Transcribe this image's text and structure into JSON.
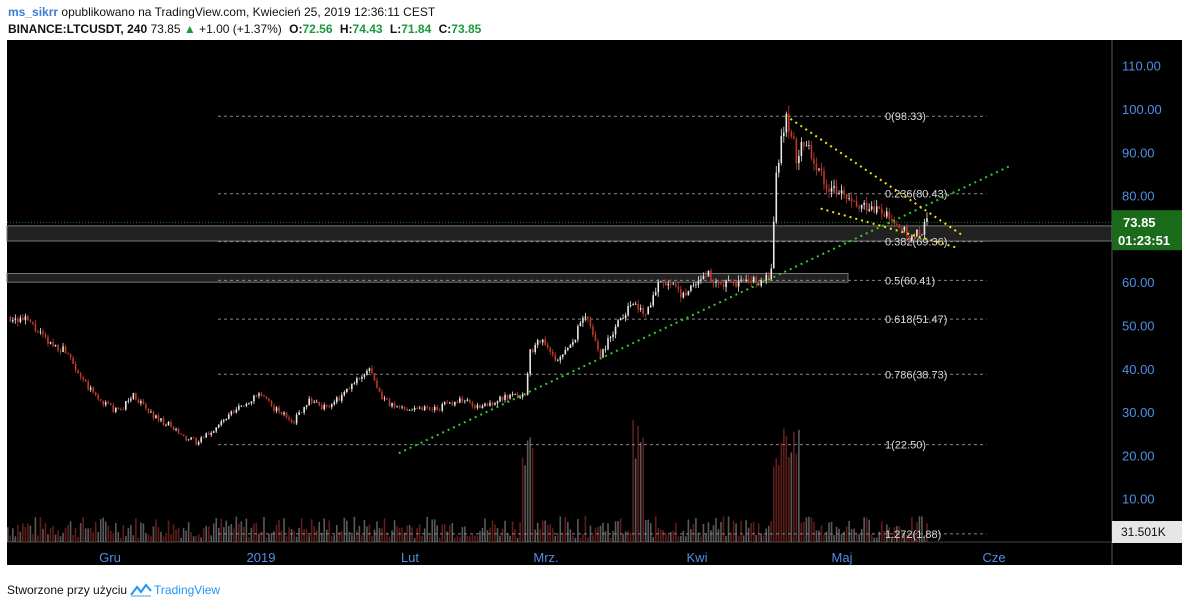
{
  "header": {
    "author": "ms_sikrr",
    "published_text": "opublikowano na TradingView.com, Kwiecień 25, 2019 12:36:11 CEST",
    "symbol": "BINANCE:LTCUSDT, 240",
    "last": "73.85",
    "change": "+1.00 (+1.37%)",
    "open_label": "O:",
    "open": "72.56",
    "high_label": "H:",
    "high": "74.43",
    "low_label": "L:",
    "low": "71.84",
    "close_label": "C:",
    "close": "73.85"
  },
  "footer": {
    "created_with": "Stworzone przy użyciu",
    "brand": "TradingView"
  },
  "colors": {
    "background": "#000000",
    "up_candle": "#e8e8e8",
    "down_candle": "#c0392b",
    "trendline_green": "#2ecc2e",
    "wedge_yellow": "#f1e40f",
    "price_label": "#1a6b1a",
    "axis_text": "#4f8fe6"
  },
  "chart_data": {
    "type": "candlestick",
    "price_axis": {
      "min": 0,
      "max": 115,
      "ticks": [
        "10.00",
        "20.00",
        "30.00",
        "40.00",
        "50.00",
        "60.00",
        "70.00",
        "80.00",
        "90.00",
        "100.00",
        "110.00"
      ]
    },
    "time_axis": {
      "labels": [
        "Gru",
        "2019",
        "Lut",
        "Mrz.",
        "Kwi",
        "Maj",
        "Cze"
      ]
    },
    "current_price": "73.85",
    "countdown": "01:23:51",
    "volume_label": "31.501K",
    "fibonacci": [
      {
        "label": "0(98.33)",
        "value": 98.33
      },
      {
        "label": "0.236(80.43)",
        "value": 80.43
      },
      {
        "label": "0.382(69.36)",
        "value": 69.36
      },
      {
        "label": "0.5(60.41)",
        "value": 60.41
      },
      {
        "label": "0.618(51.47)",
        "value": 51.47
      },
      {
        "label": "0.786(38.73)",
        "value": 38.73
      },
      {
        "label": "1(22.50)",
        "value": 22.5
      },
      {
        "label": "1.272(1.88)",
        "value": 1.88
      }
    ],
    "price_path": [
      [
        0,
        52
      ],
      [
        4,
        51
      ],
      [
        8,
        46
      ],
      [
        12,
        44
      ],
      [
        15,
        37
      ],
      [
        18,
        33
      ],
      [
        22,
        30
      ],
      [
        25,
        34
      ],
      [
        28,
        30
      ],
      [
        32,
        27
      ],
      [
        35,
        24
      ],
      [
        38,
        23
      ],
      [
        42,
        27
      ],
      [
        46,
        31
      ],
      [
        50,
        34
      ],
      [
        54,
        30
      ],
      [
        57,
        28
      ],
      [
        60,
        33
      ],
      [
        63,
        31
      ],
      [
        66,
        33
      ],
      [
        70,
        38
      ],
      [
        72,
        40
      ],
      [
        74,
        34
      ],
      [
        77,
        31
      ],
      [
        82,
        31
      ],
      [
        86,
        31
      ],
      [
        90,
        33
      ],
      [
        94,
        31
      ],
      [
        98,
        33
      ],
      [
        103,
        34
      ],
      [
        104,
        44
      ],
      [
        106,
        47
      ],
      [
        109,
        42
      ],
      [
        112,
        45
      ],
      [
        115,
        53
      ],
      [
        118,
        43
      ],
      [
        121,
        50
      ],
      [
        124,
        55
      ],
      [
        127,
        53
      ],
      [
        130,
        61
      ],
      [
        134,
        57
      ],
      [
        137,
        60
      ],
      [
        139,
        62
      ],
      [
        142,
        59
      ],
      [
        146,
        60
      ],
      [
        150,
        60
      ],
      [
        152,
        62
      ],
      [
        153,
        85
      ],
      [
        155,
        99
      ],
      [
        157,
        89
      ],
      [
        159,
        93
      ],
      [
        161,
        87
      ],
      [
        163,
        83
      ],
      [
        166,
        80
      ],
      [
        169,
        77
      ],
      [
        172,
        78
      ],
      [
        175,
        75
      ],
      [
        178,
        72
      ],
      [
        180,
        70
      ],
      [
        182,
        72
      ],
      [
        183,
        73.85
      ]
    ],
    "trendline_support": {
      "from": [
        78,
        20.5
      ],
      "to": [
        200,
        87
      ]
    },
    "wedge_upper": {
      "from": [
        155,
        98.5
      ],
      "to": [
        190,
        71
      ]
    },
    "wedge_lower": {
      "from": [
        162,
        77
      ],
      "to": [
        189,
        68
      ]
    },
    "horizontal_zones": [
      {
        "top": 73,
        "bottom": 69.5
      },
      {
        "top": 62,
        "bottom": 60
      }
    ]
  }
}
